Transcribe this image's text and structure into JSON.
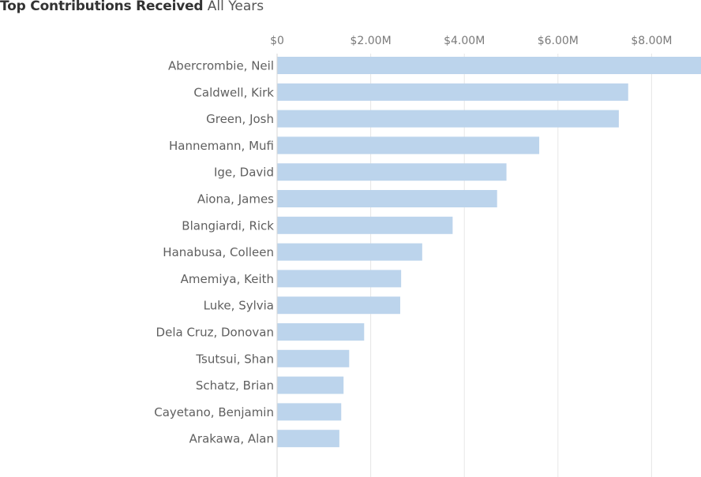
{
  "title": {
    "bold": "Top Contributions Received",
    "sub": "All Years"
  },
  "chart_data": {
    "type": "bar",
    "orientation": "horizontal",
    "title": "Top Contributions Received All Years",
    "xlabel": "",
    "ylabel": "",
    "xlim": [
      0,
      9000000
    ],
    "grid": true,
    "bar_color": "#bcd4ec",
    "tick_values": [
      0,
      2000000,
      4000000,
      6000000,
      8000000
    ],
    "tick_labels": [
      "$0",
      "$2.00M",
      "$4.00M",
      "$6.00M",
      "$8.00M"
    ],
    "categories": [
      "Abercrombie, Neil",
      "Caldwell, Kirk",
      "Green, Josh",
      "Hannemann, Mufi",
      "Ige, David",
      "Aiona, James",
      "Blangiardi, Rick",
      "Hanabusa, Colleen",
      "Amemiya, Keith",
      "Luke, Sylvia",
      "Dela Cruz, Donovan",
      "Tsutsui, Shan",
      "Schatz, Brian",
      "Cayetano, Benjamin",
      "Arakawa, Alan"
    ],
    "values": [
      9100000,
      7500000,
      7300000,
      5600000,
      4900000,
      4700000,
      3750000,
      3100000,
      2650000,
      2630000,
      1860000,
      1540000,
      1420000,
      1370000,
      1330000
    ]
  }
}
